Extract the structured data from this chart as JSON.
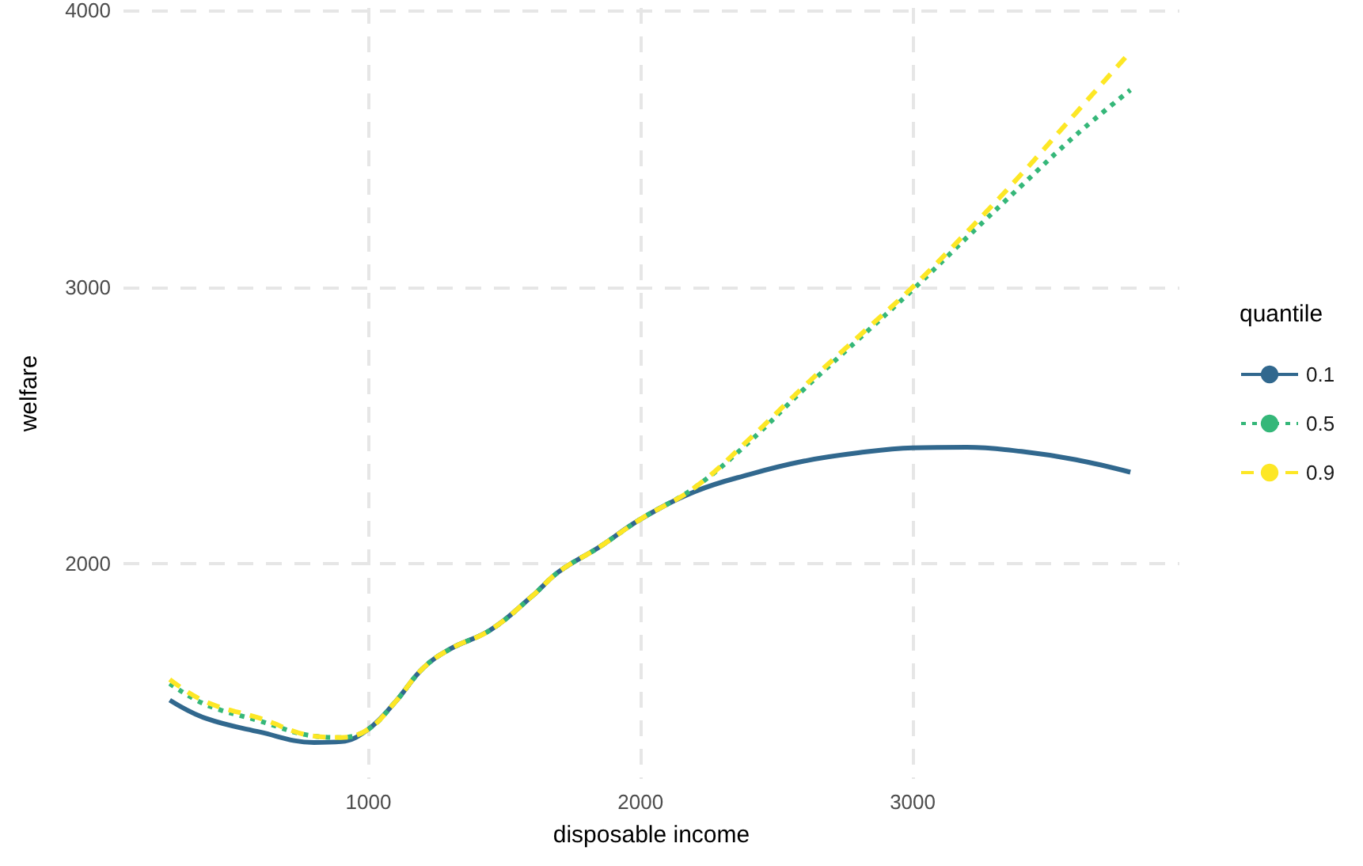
{
  "chart_data": {
    "type": "line",
    "xlabel": "disposable income",
    "ylabel": "welfare",
    "legend_title": "quantile",
    "x": [
      270,
      400,
      600,
      800,
      900,
      1000,
      1100,
      1200,
      1300,
      1450,
      1600,
      1700,
      1850,
      2000,
      2200,
      2400,
      2600,
      2800,
      3000,
      3200,
      3400,
      3600,
      3800
    ],
    "series": [
      {
        "name": "0.1",
        "color": "#31688e",
        "line_style": "solid",
        "values": [
          1505,
          1440,
          1390,
          1352,
          1355,
          1400,
          1500,
          1620,
          1690,
          1760,
          1880,
          1970,
          2060,
          2160,
          2260,
          2322,
          2370,
          2400,
          2418,
          2420,
          2405,
          2375,
          2330
        ]
      },
      {
        "name": "0.5",
        "color": "#35b779",
        "line_style": "dotted",
        "values": [
          1565,
          1490,
          1430,
          1375,
          1370,
          1400,
          1500,
          1620,
          1690,
          1760,
          1880,
          1970,
          2060,
          2160,
          2275,
          2440,
          2630,
          2810,
          2990,
          3180,
          3367,
          3550,
          3713
        ]
      },
      {
        "name": "0.9",
        "color": "#fde725",
        "line_style": "dashed",
        "values": [
          1580,
          1500,
          1440,
          1375,
          1370,
          1400,
          1500,
          1620,
          1690,
          1760,
          1880,
          1970,
          2060,
          2160,
          2275,
          2450,
          2640,
          2820,
          3000,
          3200,
          3409,
          3630,
          3851
        ]
      }
    ],
    "xlim": [
      100,
      3980
    ],
    "ylim": [
      1220,
      4010
    ],
    "xticks": [
      1000,
      2000,
      3000
    ],
    "yticks": [
      2000,
      3000,
      4000
    ],
    "grid": true,
    "legend": "right",
    "marker": "none"
  }
}
